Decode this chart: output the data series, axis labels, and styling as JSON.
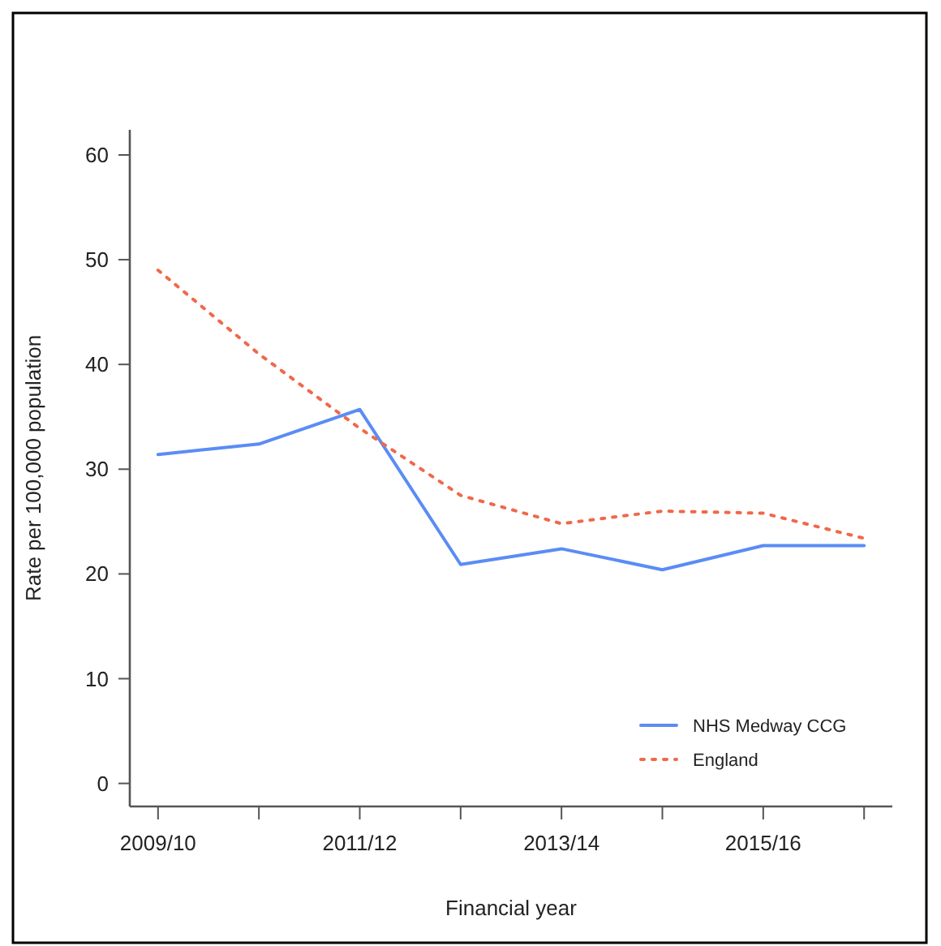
{
  "chart_data": {
    "type": "line",
    "xlabel": "Financial year",
    "ylabel": "Rate per 100,000 population",
    "categories": [
      "2009/10",
      null,
      "2011/12",
      null,
      "2013/14",
      null,
      "2015/16",
      null
    ],
    "series": [
      {
        "name": "NHS Medway CCG",
        "color": "#5b8cf5",
        "values": [
          31.4,
          32.4,
          35.7,
          20.9,
          22.4,
          20.4,
          22.7,
          22.7
        ],
        "line_style": "solid"
      },
      {
        "name": "England",
        "color": "#f0684a",
        "values": [
          49.0,
          41.0,
          33.9,
          27.5,
          24.8,
          26.0,
          25.8,
          23.4
        ],
        "line_style": "dotted"
      }
    ],
    "ylim": [
      -2.2,
      62.4
    ],
    "yticks": [
      0,
      10,
      20,
      30,
      40,
      50,
      60
    ],
    "grid": false,
    "legend": "bottom right",
    "marker": "none"
  }
}
